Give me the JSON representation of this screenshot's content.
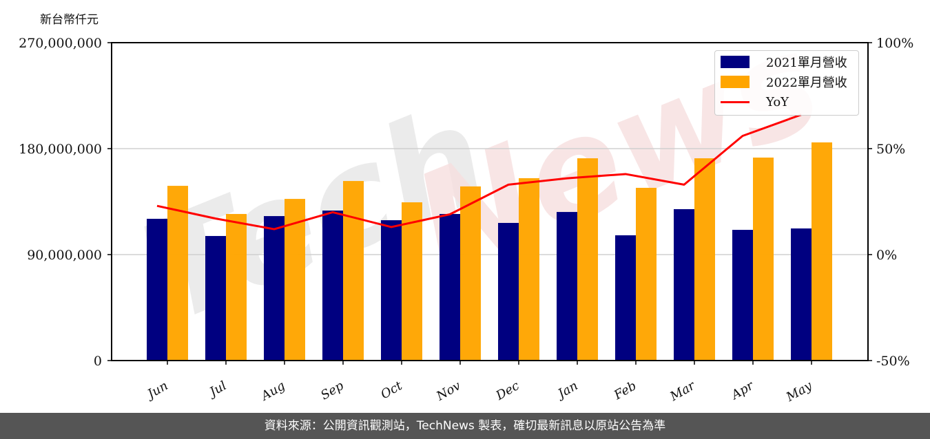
{
  "chart_data": {
    "type": "bar",
    "title": "",
    "ylabel": "新台幣仟元",
    "ylabel_right": "YoY",
    "xlabel": "",
    "categories": [
      "Jun",
      "Jul",
      "Aug",
      "Sep",
      "Oct",
      "Nov",
      "Dec",
      "Jan",
      "Feb",
      "Mar",
      "Apr",
      "May"
    ],
    "series": [
      {
        "name": "2021單月營收",
        "type": "bar",
        "color": "#000080",
        "axis": "left",
        "values": [
          120400000,
          105800000,
          122700000,
          127400000,
          119200000,
          124500000,
          116900000,
          126200000,
          106400000,
          128600000,
          111000000,
          112200000
        ]
      },
      {
        "name": "2022單月營收",
        "type": "bar",
        "color": "#FFA500",
        "axis": "left",
        "values": [
          148400000,
          124500000,
          137300000,
          152500000,
          134400000,
          147900000,
          154900000,
          171800000,
          146700000,
          171800000,
          172400000,
          185300000
        ]
      },
      {
        "name": "YoY",
        "type": "line",
        "color": "#FF0000",
        "axis": "right",
        "unit": "%",
        "values": [
          23,
          17,
          12,
          20,
          13,
          19,
          33,
          36,
          38,
          33,
          56,
          66
        ]
      }
    ],
    "ylim": [
      0,
      270000000
    ],
    "ylim_right": [
      -50,
      100
    ],
    "yticks": [
      0,
      90000000,
      180000000,
      270000000
    ],
    "ytick_labels": [
      "0",
      "90,000,000",
      "180,000,000",
      "270,000,000"
    ],
    "yticks_right": [
      -50,
      0,
      50,
      100
    ],
    "ytick_labels_right": [
      "-50%",
      "0%",
      "50%",
      "100%"
    ],
    "grid": "horizontal",
    "legend_position": "upper right",
    "watermark": "TechNews"
  },
  "unit_label": "新台幣仟元",
  "legend": {
    "items": [
      {
        "label": "2021單月營收"
      },
      {
        "label": "2022單月營收"
      },
      {
        "label": "YoY"
      }
    ]
  },
  "footer": {
    "text": "資料來源：公開資訊觀測站，TechNews 製表，確切最新訊息以原站公告為準"
  }
}
